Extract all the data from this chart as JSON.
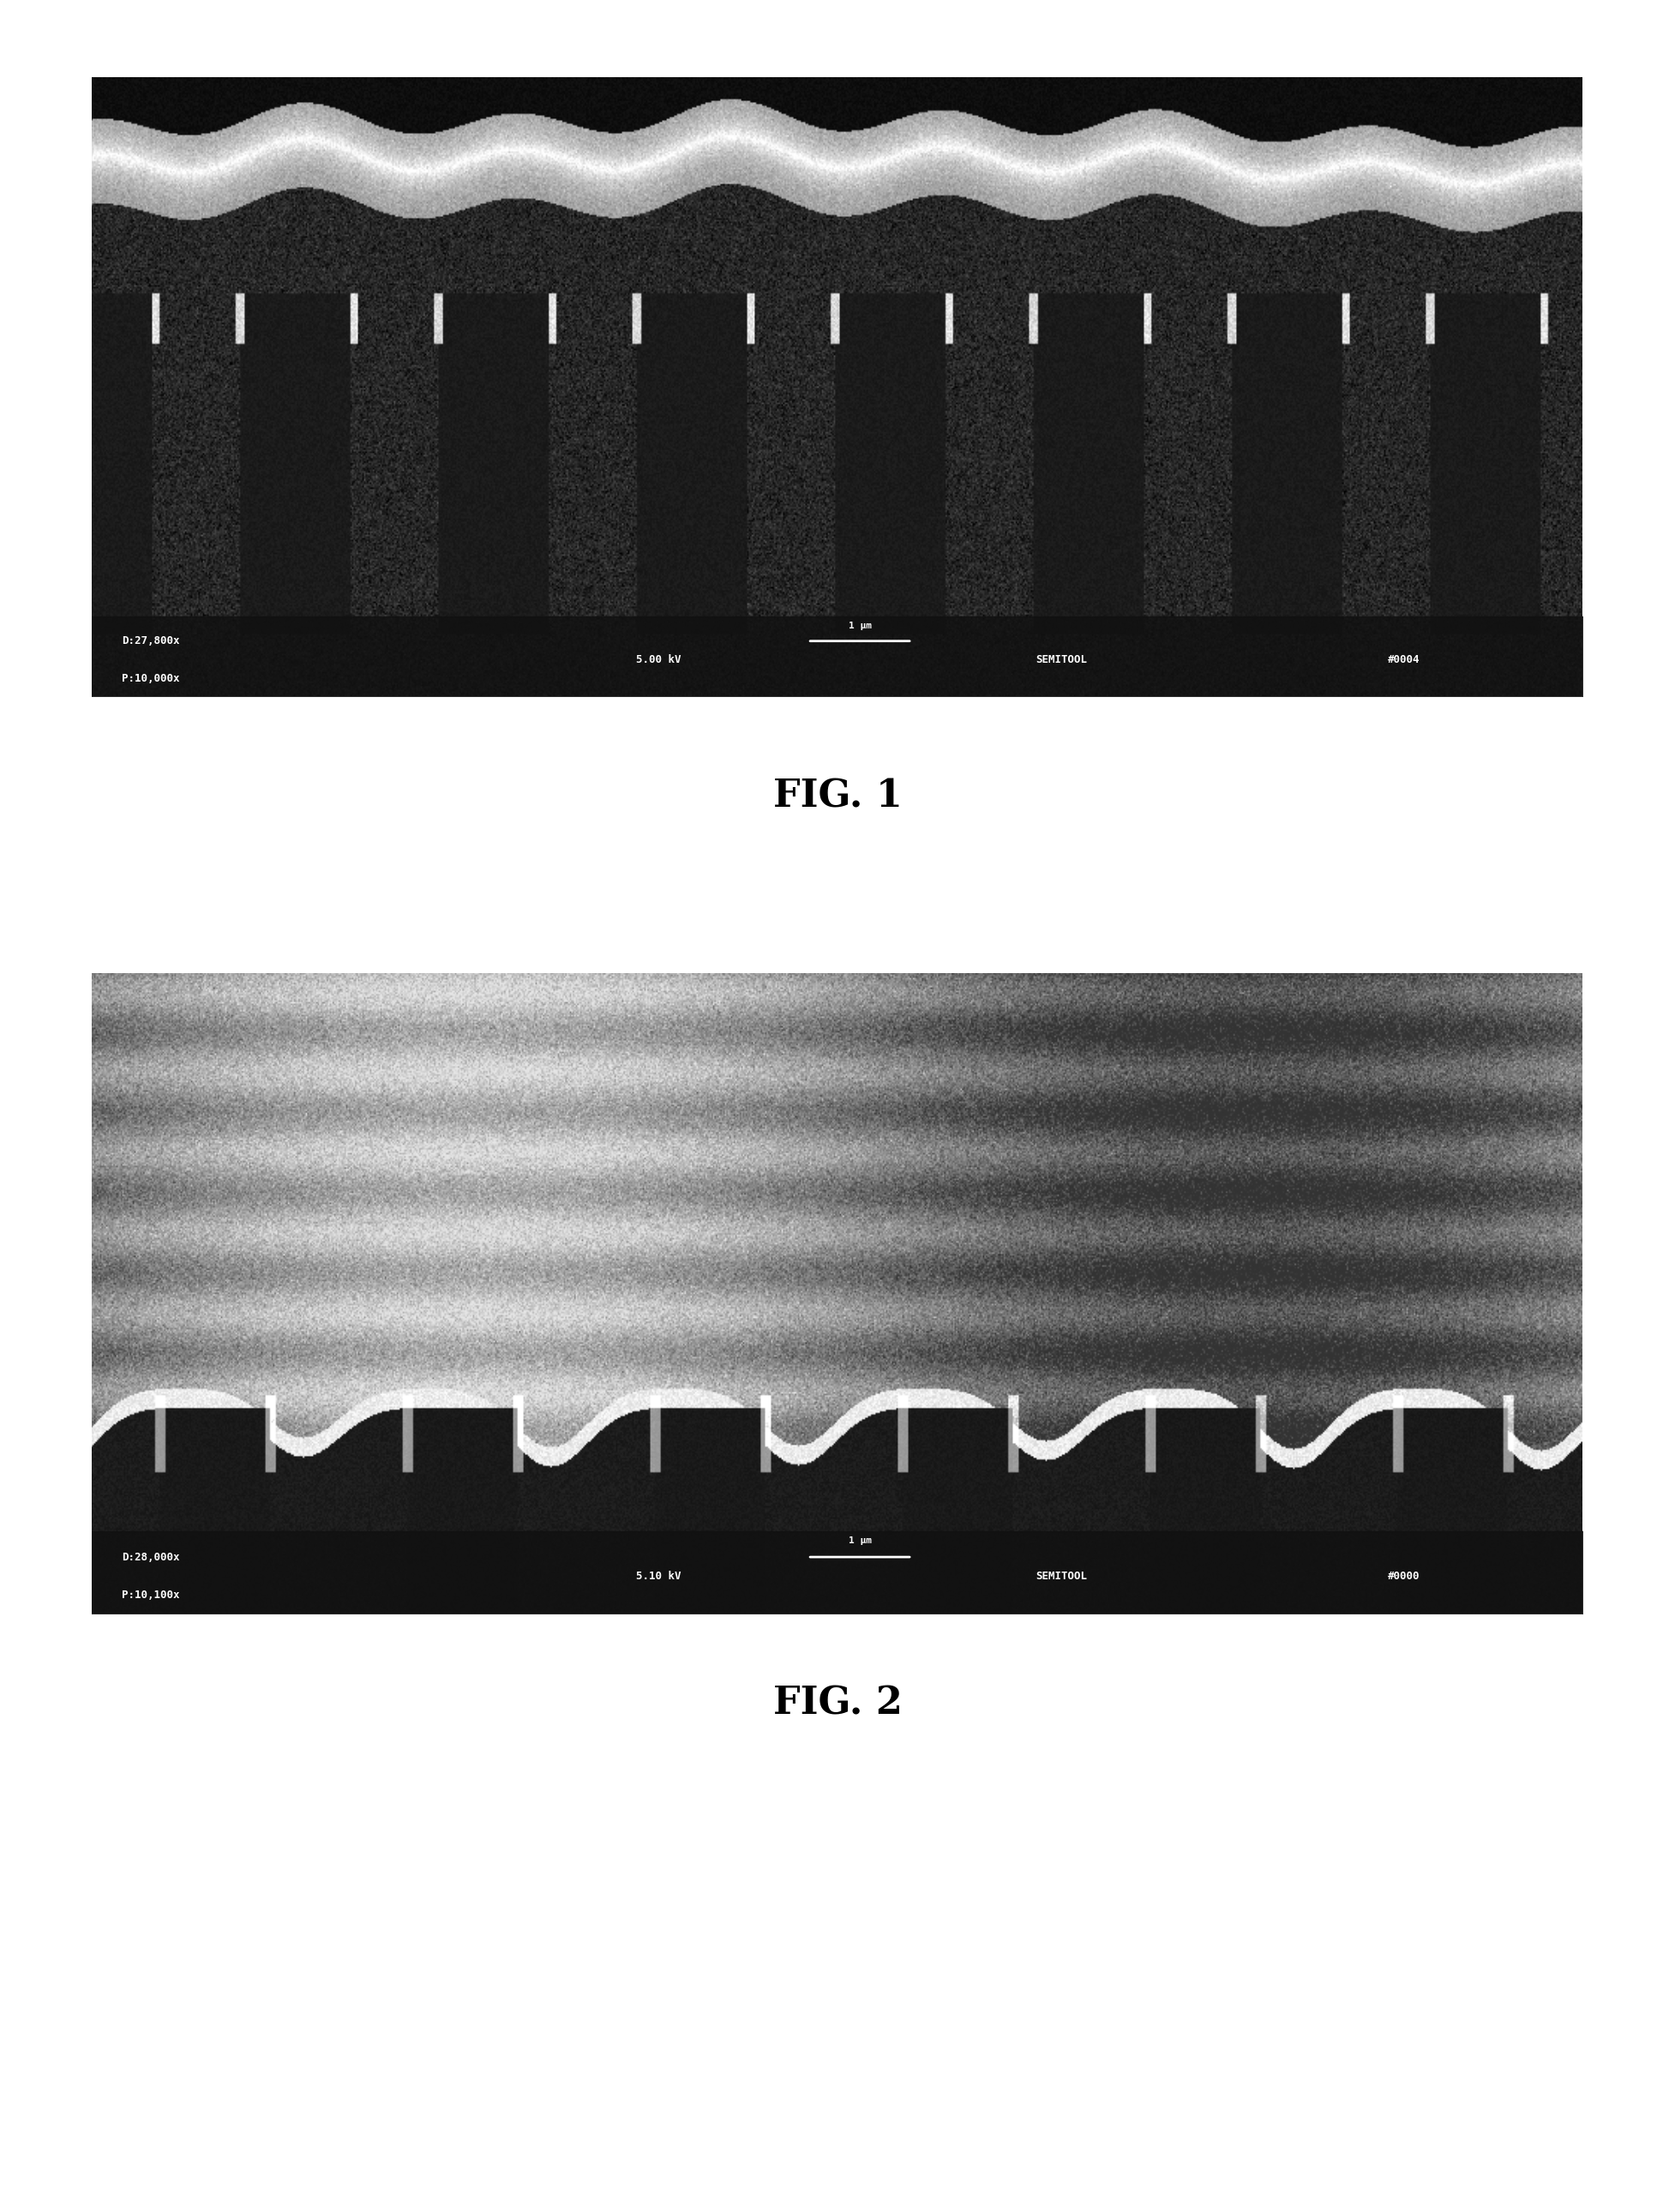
{
  "fig1_label": "FIG. 1",
  "fig2_label": "FIG. 2",
  "fig1_caption_left1": "D:27,800x",
  "fig1_caption_left2": "P:10,000x",
  "fig1_caption_mid1": "5.00 kV",
  "fig1_caption_scale": "1 μm",
  "fig1_caption_right1": "SEMITOOL",
  "fig1_caption_right2": "#0004",
  "fig2_caption_left1": "D:28,000x",
  "fig2_caption_left2": "P:10,100x",
  "fig2_caption_mid1": "5.10 kV",
  "fig2_caption_scale": "1 μm",
  "fig2_caption_right1": "SEMITOOL",
  "fig2_caption_right2": "#0000",
  "bg_color": "#ffffff",
  "image_bg": "#888888",
  "fig1_label_fontsize": 32,
  "fig2_label_fontsize": 32,
  "caption_fontsize": 11
}
